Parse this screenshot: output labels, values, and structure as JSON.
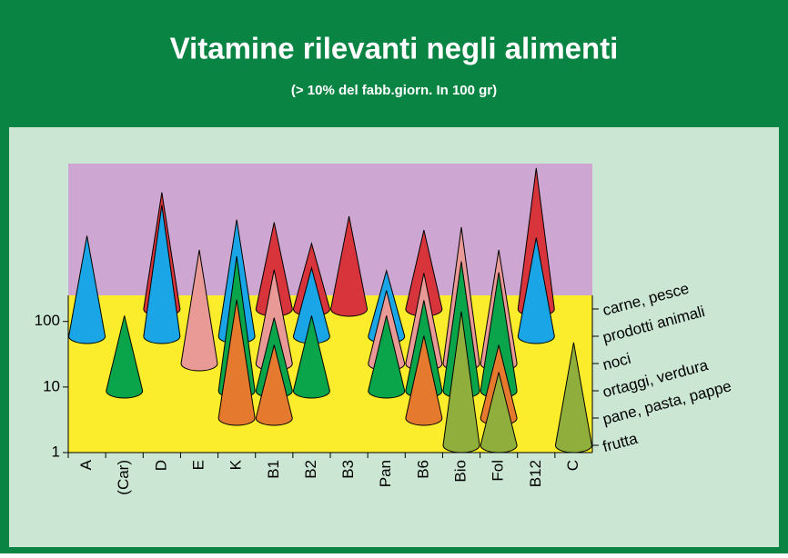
{
  "chart_data": {
    "type": "cone",
    "title": "Vitamine rilevanti negli alimenti",
    "subtitle": "(> 10% del fabb.giorn. In 100 gr)",
    "categories": [
      "A",
      "(Car)",
      "D",
      "E",
      "K",
      "B1",
      "B2",
      "B3",
      "Pan",
      "B6",
      "Bio",
      "Fol",
      "B12",
      "C"
    ],
    "log_scale": true,
    "ylim": [
      1,
      250
    ],
    "yticks": [
      1,
      10,
      100
    ],
    "series": [
      {
        "name": "carne, pesce",
        "color": "#d8343b",
        "values": [
          null,
          null,
          60,
          null,
          null,
          21,
          10,
          26,
          null,
          16,
          null,
          null,
          141,
          null
        ]
      },
      {
        "name": "prodotti animali",
        "color": "#1aa6e6",
        "values": [
          34,
          null,
          100,
          null,
          60,
          null,
          11,
          null,
          10,
          null,
          null,
          null,
          32,
          null
        ]
      },
      {
        "name": "noci",
        "color": "#e99a96",
        "values": [
          null,
          null,
          null,
          54,
          null,
          27,
          null,
          null,
          13,
          24,
          120,
          54,
          null,
          null
        ]
      },
      {
        "name": "ortaggi, verdura",
        "color": "#0aa44a",
        "values": [
          null,
          14,
          null,
          null,
          113,
          13,
          14,
          null,
          14,
          24,
          94,
          64,
          null,
          null
        ]
      },
      {
        "name": "pane, pasta, pappe",
        "color": "#e57a2e",
        "values": [
          null,
          null,
          null,
          null,
          64,
          13,
          null,
          null,
          null,
          18,
          null,
          13,
          null,
          null
        ]
      },
      {
        "name": "frutta",
        "color": "#8fae3c",
        "values": [
          null,
          null,
          null,
          null,
          null,
          null,
          null,
          null,
          null,
          null,
          110,
          13,
          null,
          37
        ]
      }
    ]
  }
}
